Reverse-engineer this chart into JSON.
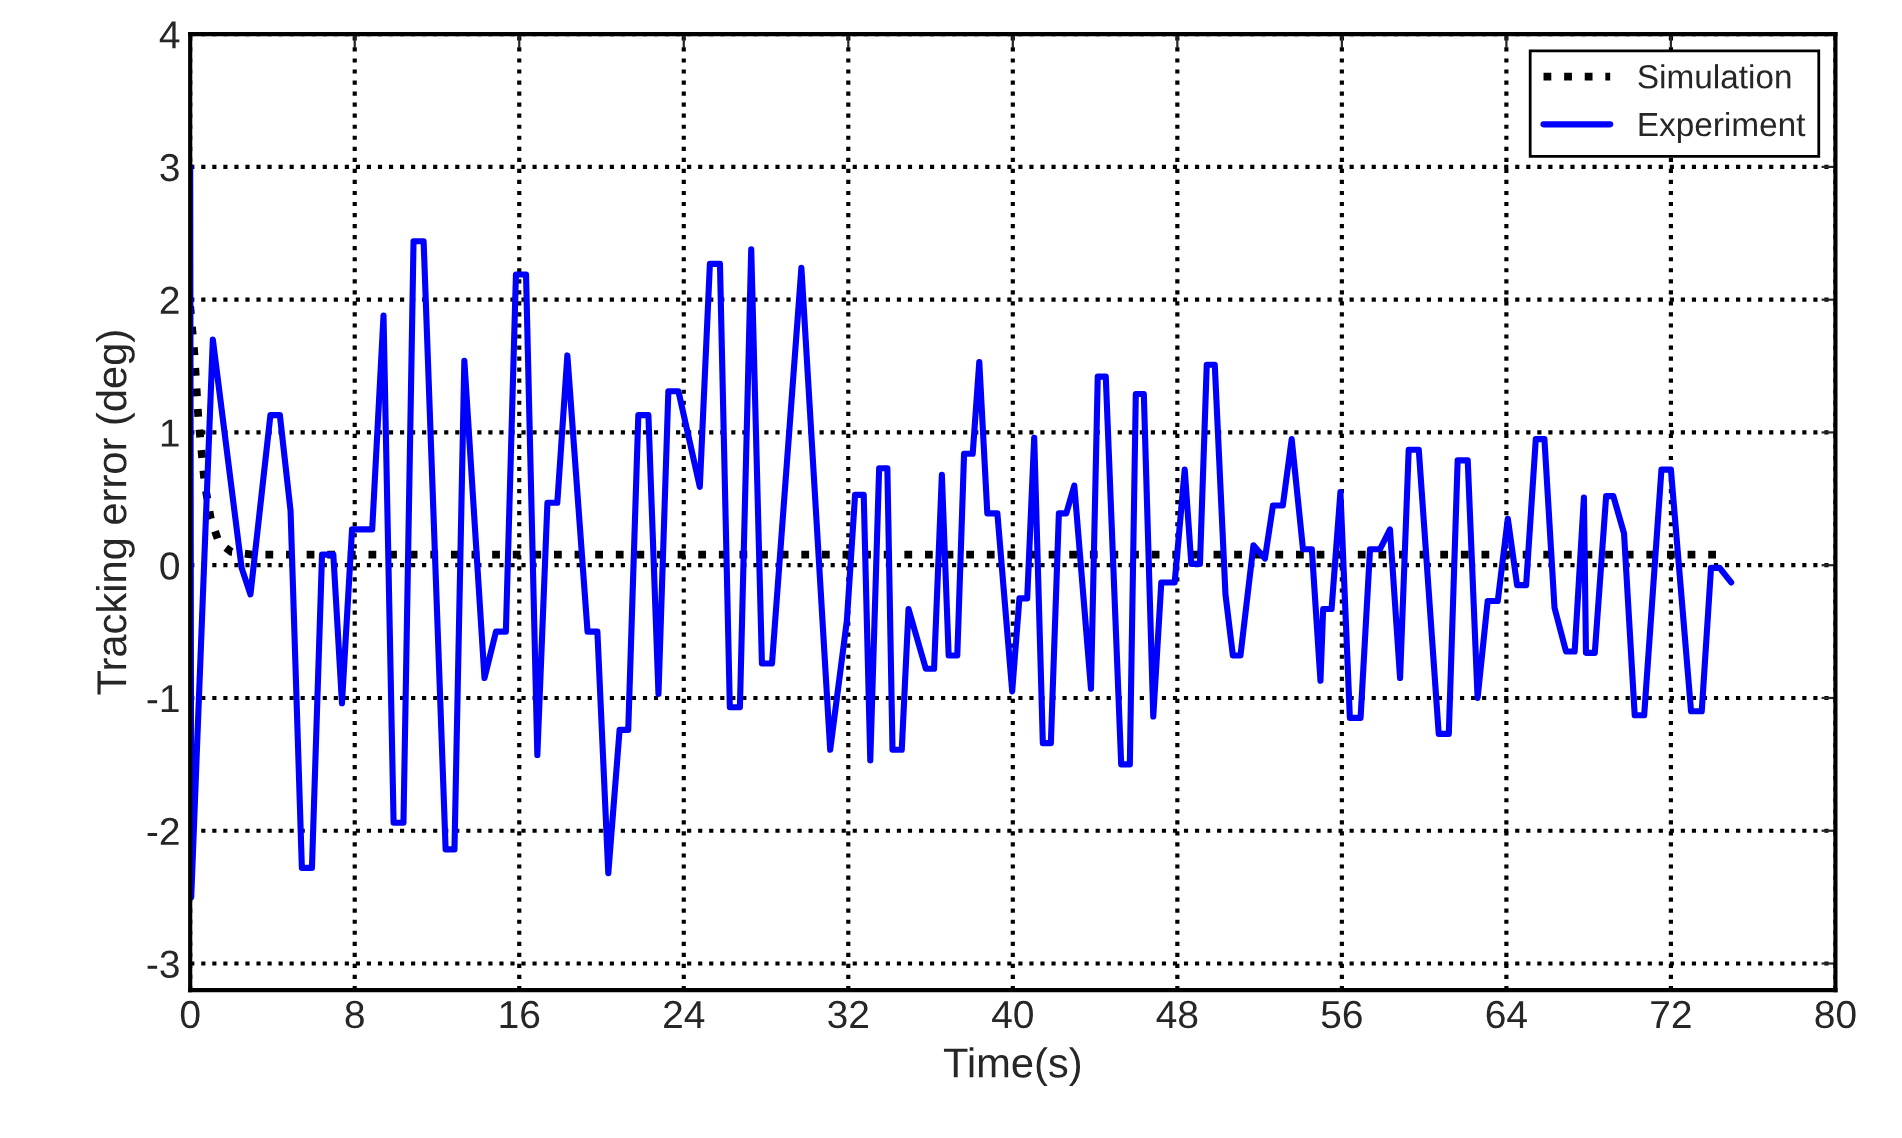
{
  "chart_data": {
    "type": "line",
    "xlabel": "Time(s)",
    "ylabel": "Tracking error (deg)",
    "xlim": [
      0,
      80
    ],
    "xticks": [
      0,
      8,
      16,
      24,
      32,
      40,
      48,
      56,
      64,
      72,
      80
    ],
    "ylim": [
      -3.2,
      4
    ],
    "yticks": [
      -3,
      -2,
      -1,
      0,
      1,
      2,
      3,
      4
    ],
    "grid": true,
    "legend": "top right",
    "series": [
      {
        "name": "Simulation",
        "color": "#000000",
        "line_style": "dotted",
        "x": [
          0,
          0.2,
          0.4,
          0.7,
          1.0,
          1.4,
          2.0,
          3.0,
          74.8
        ],
        "values": [
          1.95,
          1.6,
          1.1,
          0.62,
          0.35,
          0.17,
          0.1,
          0.08,
          0.08
        ]
      },
      {
        "name": "Experiment",
        "color": "#0000ff",
        "line_style": "solid",
        "x": [
          0,
          0.05,
          1.1,
          2.5,
          2.93,
          3.9,
          4.36,
          4.88,
          5.43,
          5.92,
          6.41,
          6.96,
          7.38,
          7.87,
          8.85,
          9.4,
          9.89,
          10.37,
          10.86,
          11.35,
          12.42,
          12.85,
          13.33,
          14.31,
          14.87,
          15.35,
          15.84,
          16.33,
          16.88,
          17.37,
          17.85,
          18.34,
          19.32,
          19.8,
          20.33,
          20.88,
          21.3,
          21.79,
          22.28,
          22.77,
          23.25,
          23.74,
          24.78,
          25.27,
          25.76,
          26.24,
          26.73,
          27.28,
          27.8,
          28.29,
          29.72,
          31.12,
          31.93,
          32.33,
          32.75,
          33.07,
          33.5,
          33.9,
          34.15,
          34.6,
          34.93,
          35.77,
          36.17,
          36.55,
          36.88,
          37.3,
          37.63,
          38.05,
          38.37,
          38.76,
          39.25,
          39.97,
          40.32,
          40.7,
          41.04,
          41.46,
          41.85,
          42.24,
          42.6,
          42.99,
          43.8,
          44.13,
          44.52,
          45.27,
          45.69,
          45.98,
          46.37,
          46.83,
          47.22,
          47.87,
          48.36,
          48.68,
          49.1,
          49.43,
          49.82,
          50.34,
          50.7,
          51.07,
          51.7,
          52.26,
          52.65,
          53.13,
          53.56,
          54.11,
          54.54,
          54.96,
          55.09,
          55.5,
          55.93,
          56.39,
          56.91,
          57.37,
          57.85,
          58.34,
          58.83,
          59.25,
          59.74,
          60.71,
          61.2,
          61.63,
          62.12,
          62.6,
          63.09,
          63.58,
          64.07,
          64.52,
          64.96,
          65.43,
          65.85,
          66.34,
          66.9,
          67.32,
          67.77,
          67.87,
          68.3,
          68.85,
          69.2,
          69.72,
          70.24,
          70.7,
          71.54,
          72.0,
          72.98,
          73.5,
          73.95,
          74.37,
          74.93
        ],
        "values": [
          3.0,
          -2.5,
          1.7,
          -0.02,
          -0.22,
          1.13,
          1.13,
          0.41,
          -2.28,
          -2.28,
          0.08,
          0.08,
          -1.04,
          0.27,
          0.27,
          1.88,
          -1.94,
          -1.94,
          2.44,
          2.44,
          -2.14,
          -2.14,
          1.54,
          -0.85,
          -0.5,
          -0.5,
          2.19,
          2.19,
          -1.43,
          0.47,
          0.47,
          1.58,
          -0.5,
          -0.5,
          -2.32,
          -1.24,
          -1.24,
          1.13,
          1.13,
          -0.97,
          1.31,
          1.31,
          0.59,
          2.27,
          2.27,
          -1.07,
          -1.07,
          2.38,
          -0.74,
          -0.74,
          2.24,
          -1.39,
          -0.42,
          0.53,
          0.53,
          -1.47,
          0.73,
          0.73,
          -1.39,
          -1.39,
          -0.33,
          -0.78,
          -0.78,
          0.68,
          -0.68,
          -0.68,
          0.84,
          0.84,
          1.53,
          0.39,
          0.39,
          -0.95,
          -0.25,
          -0.25,
          0.96,
          -1.34,
          -1.34,
          0.39,
          0.39,
          0.6,
          -0.93,
          1.42,
          1.42,
          -1.5,
          -1.5,
          1.29,
          1.29,
          -1.14,
          -0.13,
          -0.13,
          0.72,
          0.01,
          0.01,
          1.51,
          1.51,
          -0.22,
          -0.68,
          -0.68,
          0.15,
          0.05,
          0.45,
          0.45,
          0.95,
          0.12,
          0.12,
          -0.87,
          -0.33,
          -0.33,
          0.55,
          -1.15,
          -1.15,
          0.12,
          0.12,
          0.27,
          -0.85,
          0.87,
          0.87,
          -1.27,
          -1.27,
          0.79,
          0.79,
          -1.0,
          -0.27,
          -0.27,
          0.35,
          -0.15,
          -0.15,
          0.95,
          0.95,
          -0.32,
          -0.65,
          -0.65,
          0.51,
          -0.66,
          -0.66,
          0.52,
          0.52,
          0.24,
          -1.13,
          -1.13,
          0.72,
          0.72,
          -1.1,
          -1.1,
          -0.02,
          -0.02,
          -0.13
        ]
      }
    ]
  }
}
